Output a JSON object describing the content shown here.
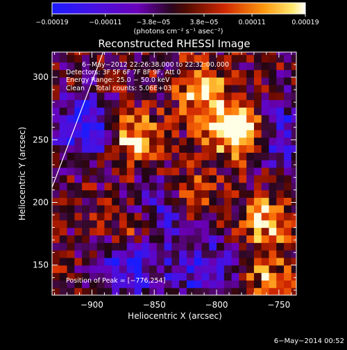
{
  "chart_data": {
    "type": "heatmap",
    "title": "Reconstructed RHESSI Image",
    "xlabel": "Heliocentric X (arcsec)",
    "ylabel": "Heliocentric Y (arcsec)",
    "xlim": [
      -932,
      -736
    ],
    "ylim": [
      126,
      320
    ],
    "x_ticks": [
      {
        "value": -900,
        "label": "−900"
      },
      {
        "value": -850,
        "label": "−850"
      },
      {
        "value": -800,
        "label": "−800"
      },
      {
        "value": -750,
        "label": "−750"
      }
    ],
    "y_ticks": [
      {
        "value": 150,
        "label": "150"
      },
      {
        "value": 200,
        "label": "200"
      },
      {
        "value": 250,
        "label": "250"
      },
      {
        "value": 300,
        "label": "300"
      }
    ],
    "colorbar": {
      "range": [
        -0.00019,
        0.00019
      ],
      "tick_labels": [
        "−0.00019",
        "−0.00011",
        "−3.8e−05",
        "3.8e−05",
        "0.00011",
        "0.00019"
      ],
      "tick_values": [
        -0.00019,
        -0.00011,
        -3.8e-05,
        3.8e-05,
        0.00011,
        0.00019
      ],
      "units_label": "(photons cm⁻² s⁻¹ asec⁻²)",
      "colors": [
        "#1b1bff",
        "#6a00b8",
        "#3a0a30",
        "#a01000",
        "#ff5a00",
        "#ffd23a",
        "#ffffff"
      ]
    },
    "annotations": {
      "time_range": "6−May−2012 22:26:38.000 to 22:32:00.000",
      "detectors": "Detectors: 3F 5F 6F 7F 8F 9F, Att 0",
      "energy_range": "Energy Range: 25.0 − 50.0 keV",
      "method_counts": "Clean     Total counts: 5.06E+03",
      "peak": "Position of Peak = [−776,254]"
    },
    "peak_position": [
      -776,
      254
    ],
    "hot_spots": [
      {
        "x": -866,
        "y": 252,
        "level": 1.0
      },
      {
        "x": -790,
        "y": 262,
        "level": 1.0
      },
      {
        "x": -776,
        "y": 254,
        "level": 0.9
      },
      {
        "x": -810,
        "y": 288,
        "level": 0.8
      },
      {
        "x": -760,
        "y": 185,
        "level": 0.75
      },
      {
        "x": -820,
        "y": 205,
        "level": 0.7
      },
      {
        "x": -870,
        "y": 175,
        "level": 0.55
      },
      {
        "x": -760,
        "y": 140,
        "level": 0.6
      }
    ],
    "cold_spots": [
      {
        "x": -905,
        "y": 260,
        "level": -1.0
      },
      {
        "x": -870,
        "y": 150,
        "level": -0.9
      },
      {
        "x": -840,
        "y": 195,
        "level": -0.7
      },
      {
        "x": -750,
        "y": 255,
        "level": -0.85
      },
      {
        "x": -810,
        "y": 145,
        "level": -0.8
      }
    ],
    "limb_line": [
      [
        -932,
        212
      ],
      [
        -891,
        320
      ]
    ]
  },
  "footer": {
    "date": "6−May−2014 00:52"
  }
}
